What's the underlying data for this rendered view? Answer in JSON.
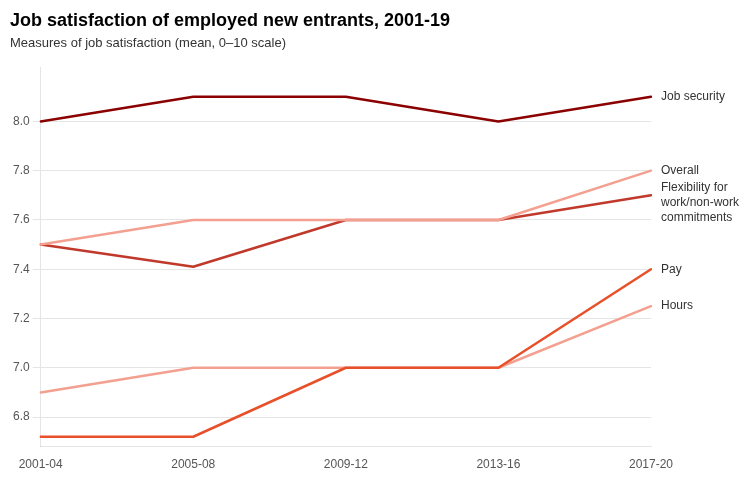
{
  "chart_data": {
    "type": "line",
    "title": "Job satisfaction of employed new entrants, 2001-19",
    "subtitle": "Measures of job satisfaction (mean, 0–10 scale)",
    "categories": [
      "2001-04",
      "2005-08",
      "2009-12",
      "2013-16",
      "2017-20"
    ],
    "series": [
      {
        "name": "Job security",
        "color": "#8B0000",
        "values": [
          8.0,
          8.1,
          8.1,
          8.0,
          8.1
        ]
      },
      {
        "name": "Overall",
        "color": "#F4A090",
        "values": [
          7.5,
          7.6,
          7.6,
          7.6,
          7.8
        ]
      },
      {
        "name": "Flexibility for\nwork/non-work\ncommitments",
        "color": "#C0392B",
        "values": [
          7.5,
          7.41,
          7.6,
          7.6,
          7.7
        ]
      },
      {
        "name": "Pay",
        "color": "#E8502A",
        "values": [
          6.72,
          6.72,
          7.0,
          7.0,
          7.4
        ]
      },
      {
        "name": "Hours",
        "color": "#F4A090",
        "values": [
          6.9,
          7.0,
          7.0,
          7.0,
          7.25
        ]
      }
    ],
    "ylim": [
      6.68,
      8.22
    ],
    "yticks": [
      6.8,
      {
        "value": 7,
        "label": "7.0"
      },
      7.2,
      7.4,
      7.6,
      7.8,
      {
        "value": 8,
        "label": "8.0"
      }
    ],
    "grid": true
  }
}
